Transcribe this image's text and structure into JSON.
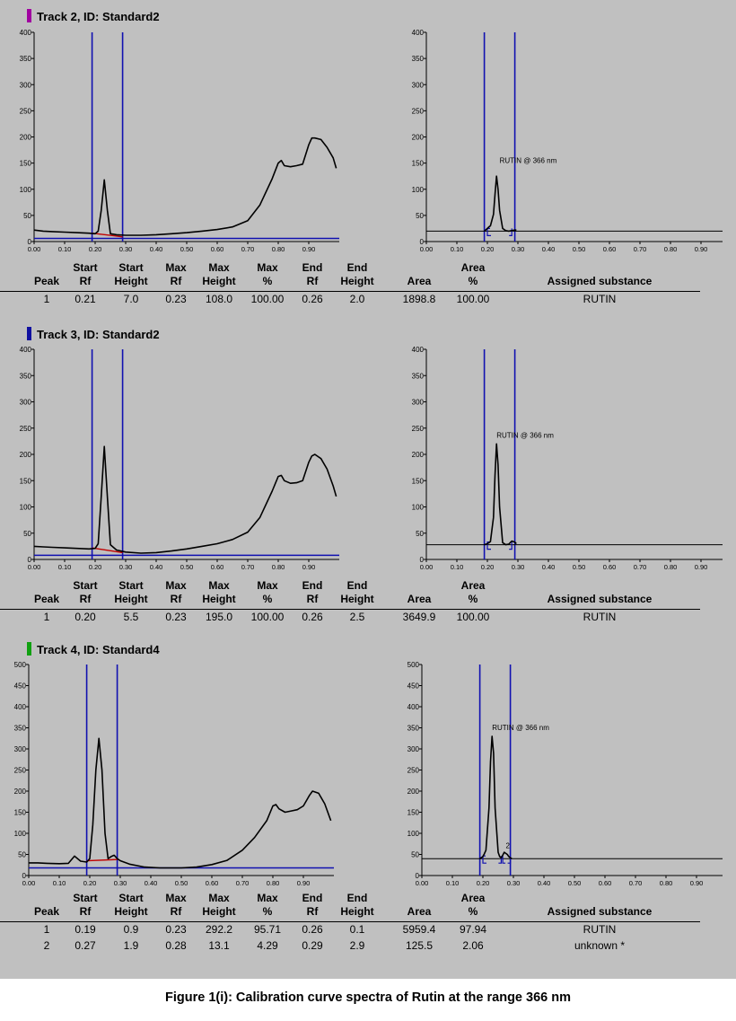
{
  "caption": "Figure 1(i): Calibration curve spectra of Rutin at the range 366 nm",
  "table_headers": {
    "peak": "Peak",
    "start_rf": [
      "Start",
      "Rf"
    ],
    "start_height": [
      "Start",
      "Height"
    ],
    "max_rf": [
      "Max",
      "Rf"
    ],
    "max_height": [
      "Max",
      "Height"
    ],
    "max_pct": [
      "Max",
      "%"
    ],
    "end_rf": [
      "End",
      "Rf"
    ],
    "end_height": [
      "End",
      "Height"
    ],
    "area": "Area",
    "area_pct": [
      "Area",
      "%"
    ],
    "substance": "Assigned substance"
  },
  "colors": {
    "curve": "#000000",
    "marker": "#1010b0",
    "baseline": "#1010b0",
    "baseline_fit": "#c00000",
    "background": "#c0c0c0"
  },
  "chart_data": [
    {
      "type": "line",
      "track_title": "Track 2, ID: Standard2",
      "title_color": "#a000a0",
      "xlim": [
        0,
        1.0
      ],
      "xticks": [
        0.0,
        0.1,
        0.2,
        0.3,
        0.4,
        0.5,
        0.6,
        0.7,
        0.8,
        0.9
      ],
      "x_tick_labels": [
        "0.00",
        "0.10",
        "0.20",
        "0.30",
        "0.40",
        "0.50",
        "0.60",
        "0.70",
        "0.80",
        "0.90"
      ],
      "ylim": [
        0,
        400
      ],
      "yticks": [
        0,
        50,
        100,
        150,
        200,
        250,
        300,
        350,
        400
      ],
      "markers_rf": [
        0.19,
        0.29
      ],
      "left_curve": {
        "x": [
          0,
          0.03,
          0.06,
          0.1,
          0.14,
          0.18,
          0.2,
          0.21,
          0.22,
          0.23,
          0.24,
          0.25,
          0.27,
          0.3,
          0.35,
          0.4,
          0.45,
          0.5,
          0.55,
          0.6,
          0.65,
          0.7,
          0.74,
          0.78,
          0.8,
          0.81,
          0.82,
          0.84,
          0.86,
          0.88,
          0.9,
          0.91,
          0.92,
          0.94,
          0.96,
          0.98,
          0.99
        ],
        "y": [
          22,
          20,
          19,
          18,
          17,
          16,
          15,
          20,
          60,
          118,
          60,
          15,
          13,
          12,
          12,
          13,
          15,
          17,
          20,
          23,
          28,
          40,
          70,
          120,
          150,
          155,
          145,
          143,
          145,
          148,
          185,
          198,
          198,
          195,
          180,
          160,
          140
        ]
      },
      "baseline_y": 6,
      "baseline_fit": {
        "x": [
          0.19,
          0.29
        ],
        "y": [
          16,
          9
        ]
      },
      "right_curve": {
        "x": [
          0.19,
          0.2,
          0.205,
          0.21,
          0.22,
          0.225,
          0.23,
          0.235,
          0.24,
          0.25,
          0.26,
          0.27,
          0.28,
          0.29,
          0.295
        ],
        "y": [
          20,
          25,
          28,
          30,
          52,
          90,
          125,
          100,
          60,
          25,
          21,
          20,
          21,
          22,
          22
        ]
      },
      "right_baseline_y": 20,
      "right_label": "RUTIN @ 366 nm",
      "right_label_pos": [
        0.24,
        150
      ],
      "integration_bracket": {
        "x": [
          0.2,
          0.28
        ],
        "y": 20
      },
      "peaks": [
        {
          "peak": "1",
          "start_rf": "0.21",
          "start_height": "7.0",
          "max_rf": "0.23",
          "max_height": "108.0",
          "max_pct": "100.00",
          "end_rf": "0.26",
          "end_height": "2.0",
          "area": "1898.8",
          "area_pct": "100.00",
          "substance": "RUTIN"
        }
      ]
    },
    {
      "type": "line",
      "track_title": "Track 3, ID: Standard2",
      "title_color": "#1010a0",
      "xlim": [
        0,
        1.0
      ],
      "xticks": [
        0.0,
        0.1,
        0.2,
        0.3,
        0.4,
        0.5,
        0.6,
        0.7,
        0.8,
        0.9
      ],
      "x_tick_labels": [
        "0.00",
        "0.10",
        "0.20",
        "0.30",
        "0.40",
        "0.50",
        "0.60",
        "0.70",
        "0.80",
        "0.90"
      ],
      "ylim": [
        0,
        400
      ],
      "yticks": [
        0,
        50,
        100,
        150,
        200,
        250,
        300,
        350,
        400
      ],
      "markers_rf": [
        0.19,
        0.29
      ],
      "left_curve": {
        "x": [
          0,
          0.03,
          0.06,
          0.1,
          0.14,
          0.18,
          0.2,
          0.21,
          0.22,
          0.23,
          0.24,
          0.25,
          0.27,
          0.3,
          0.35,
          0.4,
          0.45,
          0.5,
          0.55,
          0.6,
          0.65,
          0.7,
          0.74,
          0.78,
          0.8,
          0.81,
          0.82,
          0.84,
          0.86,
          0.88,
          0.9,
          0.91,
          0.92,
          0.94,
          0.96,
          0.98,
          0.99
        ],
        "y": [
          25,
          24,
          23,
          22,
          21,
          20,
          21,
          30,
          120,
          215,
          120,
          28,
          18,
          14,
          12,
          13,
          16,
          20,
          25,
          30,
          38,
          52,
          80,
          130,
          158,
          160,
          150,
          145,
          146,
          150,
          185,
          197,
          200,
          192,
          172,
          140,
          120
        ]
      },
      "baseline_y": 8,
      "baseline_fit": {
        "x": [
          0.19,
          0.29
        ],
        "y": [
          22,
          13
        ]
      },
      "right_curve": {
        "x": [
          0.19,
          0.2,
          0.205,
          0.21,
          0.22,
          0.225,
          0.23,
          0.235,
          0.24,
          0.25,
          0.26,
          0.27,
          0.28,
          0.29,
          0.295
        ],
        "y": [
          28,
          30,
          32,
          34,
          80,
          160,
          220,
          180,
          100,
          32,
          28,
          29,
          35,
          33,
          30
        ]
      },
      "right_baseline_y": 28,
      "right_label": "RUTIN @ 366 nm",
      "right_label_pos": [
        0.23,
        232
      ],
      "integration_bracket": {
        "x": [
          0.2,
          0.28
        ],
        "y": 28
      },
      "peaks": [
        {
          "peak": "1",
          "start_rf": "0.20",
          "start_height": "5.5",
          "max_rf": "0.23",
          "max_height": "195.0",
          "max_pct": "100.00",
          "end_rf": "0.26",
          "end_height": "2.5",
          "area": "3649.9",
          "area_pct": "100.00",
          "substance": "RUTIN"
        }
      ]
    },
    {
      "type": "line",
      "track_title": "Track 4, ID: Standard4",
      "title_color": "#10a010",
      "xlim": [
        0,
        1.0
      ],
      "xticks": [
        0.0,
        0.1,
        0.2,
        0.3,
        0.4,
        0.5,
        0.6,
        0.7,
        0.8,
        0.9
      ],
      "x_tick_labels": [
        "0.00",
        "0.10",
        "0.20",
        "0.30",
        "0.40",
        "0.50",
        "0.60",
        "0.70",
        "0.80",
        "0.90"
      ],
      "ylim": [
        0,
        500
      ],
      "yticks": [
        0,
        50,
        100,
        150,
        200,
        250,
        300,
        350,
        400,
        450,
        500
      ],
      "markers_rf": [
        0.19,
        0.29
      ],
      "left_curve": {
        "x": [
          0,
          0.03,
          0.06,
          0.1,
          0.13,
          0.15,
          0.17,
          0.19,
          0.2,
          0.21,
          0.22,
          0.23,
          0.24,
          0.25,
          0.26,
          0.27,
          0.28,
          0.29,
          0.3,
          0.33,
          0.38,
          0.43,
          0.5,
          0.55,
          0.6,
          0.65,
          0.7,
          0.74,
          0.78,
          0.8,
          0.81,
          0.82,
          0.84,
          0.86,
          0.88,
          0.9,
          0.92,
          0.93,
          0.95,
          0.97,
          0.99
        ],
        "y": [
          30,
          30,
          29,
          28,
          29,
          46,
          34,
          32,
          40,
          120,
          250,
          325,
          250,
          100,
          40,
          45,
          48,
          40,
          35,
          27,
          20,
          18,
          18,
          20,
          26,
          36,
          60,
          90,
          130,
          165,
          168,
          158,
          150,
          153,
          156,
          165,
          190,
          200,
          195,
          170,
          130
        ]
      },
      "baseline_y": 18,
      "baseline_fit": {
        "x": [
          0.19,
          0.29
        ],
        "y": [
          35,
          38
        ]
      },
      "right_curve": {
        "x": [
          0.19,
          0.2,
          0.205,
          0.21,
          0.22,
          0.225,
          0.23,
          0.235,
          0.24,
          0.25,
          0.255,
          0.26,
          0.265,
          0.27,
          0.28,
          0.285,
          0.29,
          0.295
        ],
        "y": [
          40,
          45,
          52,
          60,
          160,
          270,
          330,
          290,
          160,
          55,
          45,
          42,
          48,
          55,
          50,
          45,
          42,
          40
        ]
      },
      "right_baseline_y": 40,
      "right_label": "RUTIN @ 366 nm",
      "right_label_pos": [
        0.23,
        345
      ],
      "right_extra_label": "2",
      "right_extra_label_pos": [
        0.275,
        65
      ],
      "integration_bracket": {
        "x": [
          0.2,
          0.26
        ],
        "y": 40
      },
      "integration_bracket2": {
        "x": [
          0.265,
          0.29
        ],
        "y": 40
      },
      "peaks": [
        {
          "peak": "1",
          "start_rf": "0.19",
          "start_height": "0.9",
          "max_rf": "0.23",
          "max_height": "292.2",
          "max_pct": "95.71",
          "end_rf": "0.26",
          "end_height": "0.1",
          "area": "5959.4",
          "area_pct": "97.94",
          "substance": "RUTIN"
        },
        {
          "peak": "2",
          "start_rf": "0.27",
          "start_height": "1.9",
          "max_rf": "0.28",
          "max_height": "13.1",
          "max_pct": "4.29",
          "end_rf": "0.29",
          "end_height": "2.9",
          "area": "125.5",
          "area_pct": "2.06",
          "substance": "unknown *"
        }
      ]
    }
  ]
}
